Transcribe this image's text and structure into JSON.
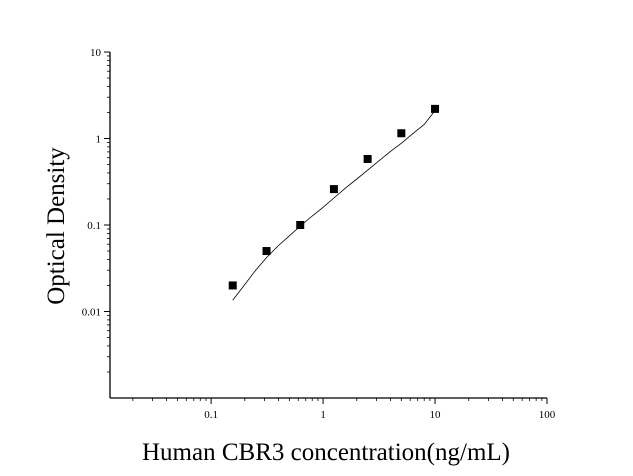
{
  "chart_data": {
    "type": "scatter",
    "xlabel": "Human CBR3 concentration(ng/mL)",
    "ylabel": "Optical Density",
    "x_scale": "log",
    "y_scale": "log",
    "xlim": [
      0.0125,
      100
    ],
    "ylim": [
      0.001,
      10
    ],
    "x_ticks": [
      {
        "value": 0.1,
        "label": "0.1"
      },
      {
        "value": 1,
        "label": "1"
      },
      {
        "value": 10,
        "label": "10"
      },
      {
        "value": 100,
        "label": "100"
      }
    ],
    "y_ticks": [
      {
        "value": 0.01,
        "label": "0.01"
      },
      {
        "value": 0.1,
        "label": "0.1"
      },
      {
        "value": 1,
        "label": "1"
      },
      {
        "value": 10,
        "label": "10"
      }
    ],
    "grid": false,
    "series": [
      {
        "marker": "square",
        "color": "#000000",
        "x": [
          0.156,
          0.3125,
          0.625,
          1.25,
          2.5,
          5,
          10
        ],
        "y": [
          0.02,
          0.05,
          0.1,
          0.26,
          0.58,
          1.15,
          2.2
        ]
      }
    ],
    "fit_curve": {
      "color": "#000000",
      "x": [
        0.156,
        0.2,
        0.25,
        0.3125,
        0.4,
        0.5,
        0.625,
        0.8,
        1,
        1.25,
        1.6,
        2,
        2.5,
        3.2,
        4,
        5,
        6.4,
        8,
        10
      ],
      "y": [
        0.0135,
        0.0205,
        0.03,
        0.042,
        0.058,
        0.075,
        0.097,
        0.127,
        0.16,
        0.205,
        0.27,
        0.34,
        0.43,
        0.56,
        0.71,
        0.88,
        1.15,
        1.45,
        2.1
      ]
    }
  }
}
